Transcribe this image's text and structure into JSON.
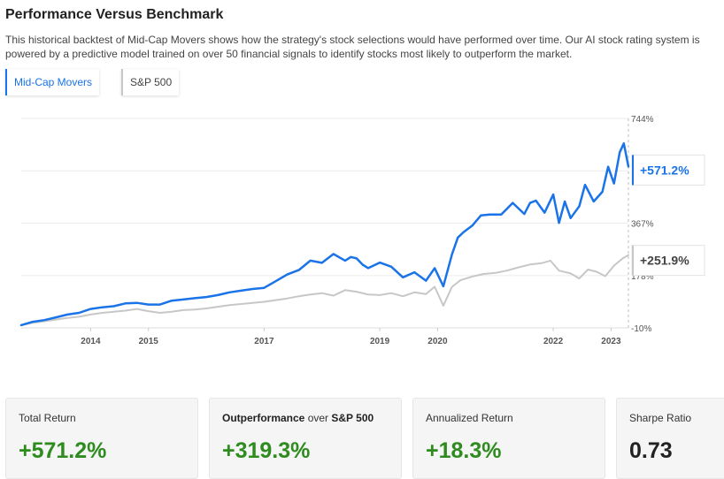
{
  "header": {
    "title": "Performance Versus Benchmark",
    "description": "This historical backtest of Mid-Cap Movers shows how the strategy's stock selections would have performed over time. Our AI stock rating system is powered by a predictive model trained on over 50 financial signals to identify stocks most likely to outperform the market."
  },
  "legend": [
    {
      "label": "Mid-Cap Movers",
      "color": "#1a73e8"
    },
    {
      "label": "S&P 500",
      "color": "#c7c7c7"
    }
  ],
  "chart_data": {
    "type": "line",
    "x_tick_labels": [
      "2014",
      "2015",
      "2017",
      "2019",
      "2020",
      "2022",
      "2023"
    ],
    "x_ticks": [
      2014.0,
      2015.0,
      2017.0,
      2019.0,
      2020.0,
      2022.0,
      2023.0
    ],
    "xlim": [
      2012.8,
      2023.3
    ],
    "y_tick_labels": [
      "744%",
      "367%",
      "178%",
      "-10%"
    ],
    "y_ticks": [
      744,
      367,
      178,
      -10
    ],
    "ylim": [
      -10,
      744
    ],
    "grid": true,
    "series": [
      {
        "name": "Mid-Cap Movers",
        "color": "#1a73e8",
        "end_label": "+571.2%",
        "x": [
          2012.8,
          2013.0,
          2013.2,
          2013.4,
          2013.6,
          2013.8,
          2014.0,
          2014.2,
          2014.4,
          2014.6,
          2014.8,
          2015.0,
          2015.2,
          2015.4,
          2015.6,
          2015.8,
          2016.0,
          2016.2,
          2016.4,
          2016.6,
          2016.8,
          2017.0,
          2017.2,
          2017.4,
          2017.6,
          2017.8,
          2018.0,
          2018.2,
          2018.4,
          2018.5,
          2018.6,
          2018.7,
          2018.8,
          2019.0,
          2019.2,
          2019.4,
          2019.6,
          2019.8,
          2019.95,
          2020.1,
          2020.25,
          2020.35,
          2020.45,
          2020.6,
          2020.75,
          2020.9,
          2021.1,
          2021.3,
          2021.5,
          2021.6,
          2021.7,
          2021.85,
          2022.0,
          2022.1,
          2022.2,
          2022.3,
          2022.45,
          2022.55,
          2022.7,
          2022.85,
          2022.95,
          2023.05,
          2023.15,
          2023.22,
          2023.3
        ],
        "y": [
          0,
          12,
          18,
          28,
          38,
          44,
          58,
          64,
          68,
          78,
          80,
          74,
          74,
          88,
          92,
          97,
          101,
          108,
          118,
          124,
          130,
          134,
          158,
          182,
          198,
          232,
          224,
          256,
          232,
          245,
          240,
          218,
          205,
          225,
          210,
          172,
          190,
          160,
          205,
          140,
          255,
          315,
          335,
          358,
          395,
          398,
          398,
          440,
          400,
          440,
          448,
          405,
          470,
          368,
          445,
          385,
          428,
          505,
          445,
          480,
          570,
          510,
          622,
          654,
          571
        ]
      },
      {
        "name": "S&P 500",
        "color": "#c7c7c7",
        "end_label": "+251.9%",
        "x": [
          2012.8,
          2013.0,
          2013.2,
          2013.4,
          2013.6,
          2013.8,
          2014.0,
          2014.2,
          2014.4,
          2014.6,
          2014.8,
          2015.0,
          2015.2,
          2015.4,
          2015.6,
          2015.8,
          2016.0,
          2016.2,
          2016.4,
          2016.6,
          2016.8,
          2017.0,
          2017.2,
          2017.4,
          2017.6,
          2017.8,
          2018.0,
          2018.2,
          2018.4,
          2018.6,
          2018.8,
          2019.0,
          2019.2,
          2019.4,
          2019.6,
          2019.8,
          2019.95,
          2020.1,
          2020.25,
          2020.4,
          2020.6,
          2020.8,
          2021.0,
          2021.2,
          2021.4,
          2021.6,
          2021.8,
          2021.95,
          2022.1,
          2022.3,
          2022.45,
          2022.6,
          2022.75,
          2022.9,
          2023.05,
          2023.2,
          2023.3
        ],
        "y": [
          0,
          8,
          14,
          20,
          26,
          30,
          38,
          44,
          48,
          52,
          58,
          50,
          44,
          48,
          54,
          56,
          60,
          66,
          72,
          76,
          80,
          84,
          90,
          96,
          104,
          110,
          115,
          106,
          126,
          120,
          110,
          108,
          115,
          104,
          118,
          112,
          138,
          70,
          138,
          162,
          175,
          184,
          188,
          196,
          208,
          218,
          223,
          232,
          196,
          186,
          168,
          200,
          192,
          176,
          214,
          240,
          252
        ]
      }
    ]
  },
  "stats": [
    {
      "label": "Total Return",
      "label_bold": "",
      "label_suffix": "",
      "value": "+571.2%",
      "tone": "positive"
    },
    {
      "label": "",
      "label_bold": "Outperformance",
      "label_mid": " over ",
      "label_bold2": "S&P 500",
      "value": "+319.3%",
      "tone": "positive"
    },
    {
      "label": "Annualized Return",
      "value": "+18.3%",
      "tone": "positive"
    },
    {
      "label": "Sharpe Ratio",
      "value": "0.73",
      "tone": "neutral"
    }
  ]
}
